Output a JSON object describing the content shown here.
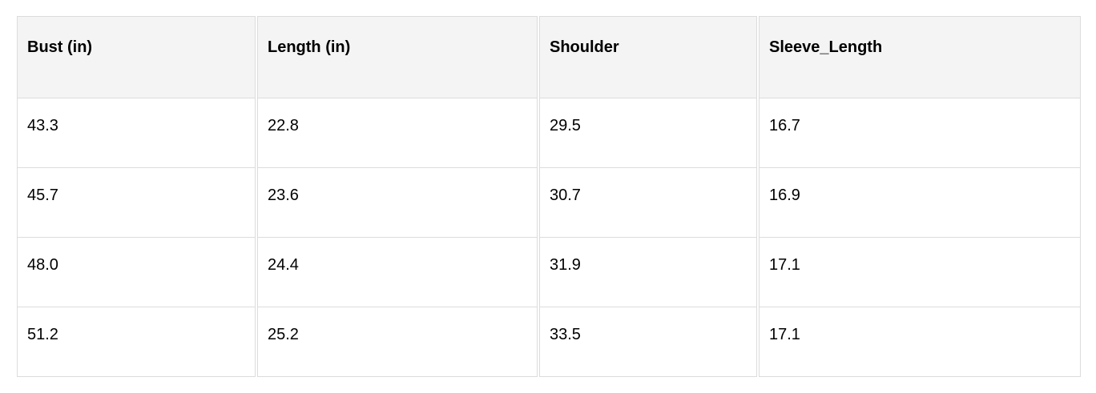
{
  "table": {
    "headers": [
      "Bust (in)",
      "Length (in)",
      "Shoulder",
      "Sleeve_Length"
    ],
    "rows": [
      [
        "43.3",
        "22.8",
        "29.5",
        "16.7"
      ],
      [
        "45.7",
        "23.6",
        "30.7",
        "16.9"
      ],
      [
        "48.0",
        "24.4",
        "31.9",
        "17.1"
      ],
      [
        "51.2",
        "25.2",
        "33.5",
        "17.1"
      ]
    ]
  }
}
